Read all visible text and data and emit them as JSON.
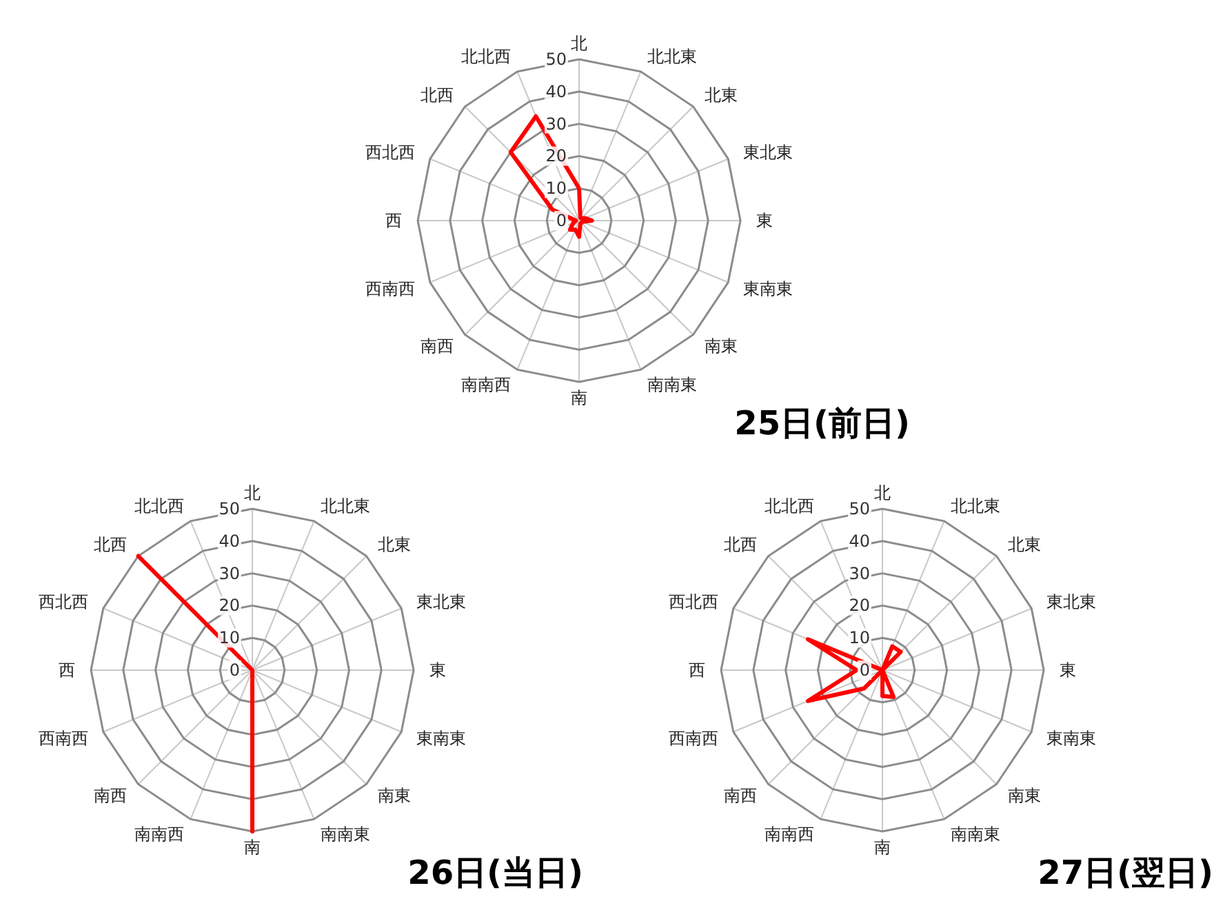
{
  "chart_data": [
    {
      "type": "radar",
      "title": "25日(前日)",
      "categories": [
        "北",
        "北北東",
        "北東",
        "東北東",
        "東",
        "東南東",
        "南東",
        "南南東",
        "南",
        "南南西",
        "南西",
        "西南西",
        "西",
        "西北西",
        "北西",
        "北北西"
      ],
      "ylim": [
        0,
        50
      ],
      "yticks": [
        0,
        10,
        20,
        30,
        40,
        50
      ],
      "grid": true,
      "series": [
        {
          "color": "#ff0000",
          "values": [
            10,
            1,
            1,
            2,
            4,
            1,
            1,
            1,
            5,
            3,
            4,
            2,
            1,
            9,
            30,
            35
          ]
        }
      ]
    },
    {
      "type": "radar",
      "title": "26日(当日)",
      "categories": [
        "北",
        "北北東",
        "北東",
        "東北東",
        "東",
        "東南東",
        "南東",
        "南南東",
        "南",
        "南南西",
        "南西",
        "西南西",
        "西",
        "西北西",
        "北西",
        "北北西"
      ],
      "ylim": [
        0,
        50
      ],
      "yticks": [
        0,
        10,
        20,
        30,
        40,
        50
      ],
      "grid": true,
      "series": [
        {
          "color": "#ff0000",
          "values": [
            0,
            0,
            0,
            0,
            0,
            0,
            0,
            0,
            50,
            0,
            0,
            0,
            0,
            0,
            50,
            0
          ]
        }
      ]
    },
    {
      "type": "radar",
      "title": "27日(翌日)",
      "categories": [
        "北",
        "北北東",
        "北東",
        "東北東",
        "東",
        "東南東",
        "南東",
        "南南東",
        "南",
        "南南西",
        "南西",
        "西南西",
        "西",
        "西北西",
        "北西",
        "北北西"
      ],
      "ylim": [
        0,
        50
      ],
      "yticks": [
        0,
        10,
        20,
        30,
        40,
        50
      ],
      "grid": true,
      "series": [
        {
          "color": "#ff0000",
          "values": [
            0,
            8,
            8,
            0,
            0,
            0,
            0,
            9,
            8,
            0,
            8,
            25,
            8,
            25,
            0,
            0
          ]
        }
      ]
    }
  ]
}
